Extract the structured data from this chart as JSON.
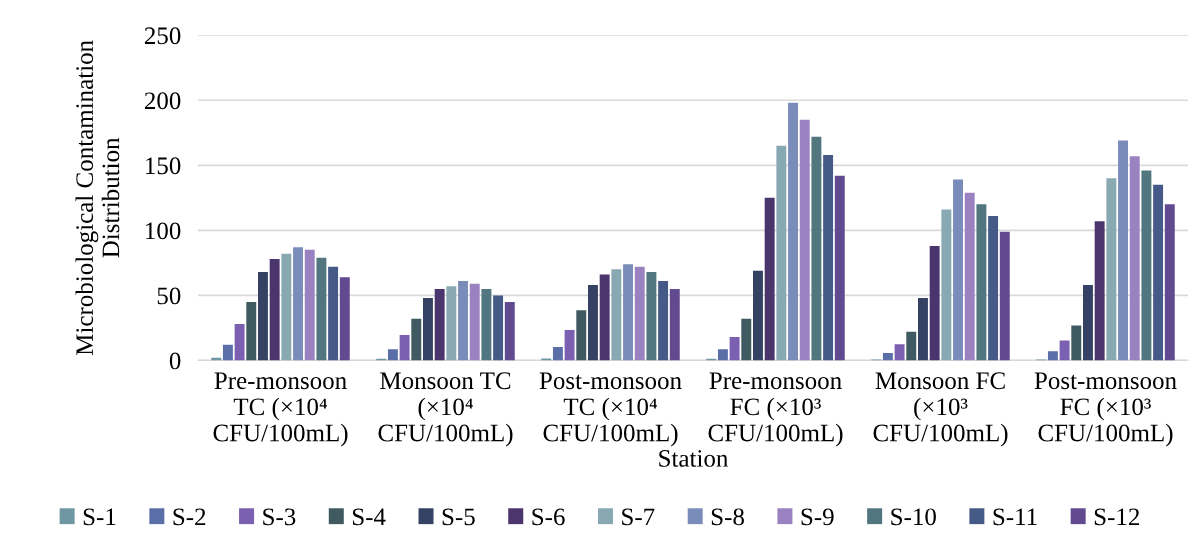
{
  "chart_data": {
    "type": "bar",
    "xlabel": "Station",
    "ylabel": "Microbiological Contamination\nDistribution",
    "categories": [
      "Pre-monsoon\nTC (×10⁴\nCFU/100mL)",
      "Monsoon TC\n(×10⁴\nCFU/100mL)",
      "Post-monsoon\nTC (×10⁴\nCFU/100mL)",
      "Pre-monsoon\nFC (×10³\nCFU/100mL)",
      "Monsoon FC\n(×10³\nCFU/100mL)",
      "Post-monsoon\nFC (×10³\nCFU/100mL)"
    ],
    "series": [
      {
        "name": "S-1",
        "color": "#6f97a3",
        "values": [
          2,
          1.3,
          1.5,
          1.3,
          0.8,
          0.8
        ]
      },
      {
        "name": "S-2",
        "color": "#5a6fa8",
        "values": [
          12,
          8.6,
          10.4,
          8.6,
          5.7,
          7
        ]
      },
      {
        "name": "S-3",
        "color": "#7b5fb0",
        "values": [
          28,
          19.5,
          23.4,
          18,
          12.5,
          15.3
        ]
      },
      {
        "name": "S-4",
        "color": "#3f5a61",
        "values": [
          45,
          32,
          38.5,
          32,
          22,
          26.8
        ]
      },
      {
        "name": "S-5",
        "color": "#354263",
        "values": [
          68,
          48,
          58,
          69,
          48,
          58
        ]
      },
      {
        "name": "S-6",
        "color": "#4a356c",
        "values": [
          78,
          55,
          66,
          125,
          88,
          107
        ]
      },
      {
        "name": "S-7",
        "color": "#88a9b1",
        "values": [
          82,
          57,
          70,
          165,
          116,
          140
        ]
      },
      {
        "name": "S-8",
        "color": "#7a8cba",
        "values": [
          87,
          61,
          74,
          198,
          139,
          169
        ]
      },
      {
        "name": "S-9",
        "color": "#9a82c0",
        "values": [
          85,
          59,
          72,
          185,
          129,
          157
        ]
      },
      {
        "name": "S-10",
        "color": "#52767f",
        "values": [
          79,
          55,
          68,
          172,
          120,
          146
        ]
      },
      {
        "name": "S-11",
        "color": "#465a88",
        "values": [
          72,
          50,
          61,
          158,
          111,
          135
        ]
      },
      {
        "name": "S-12",
        "color": "#624a90",
        "values": [
          64,
          45,
          55,
          142,
          99,
          120
        ]
      }
    ],
    "ylim": [
      0,
      250
    ],
    "yticks": [
      0,
      50,
      100,
      150,
      200,
      250
    ],
    "grid": "y",
    "legend": "bottom"
  }
}
